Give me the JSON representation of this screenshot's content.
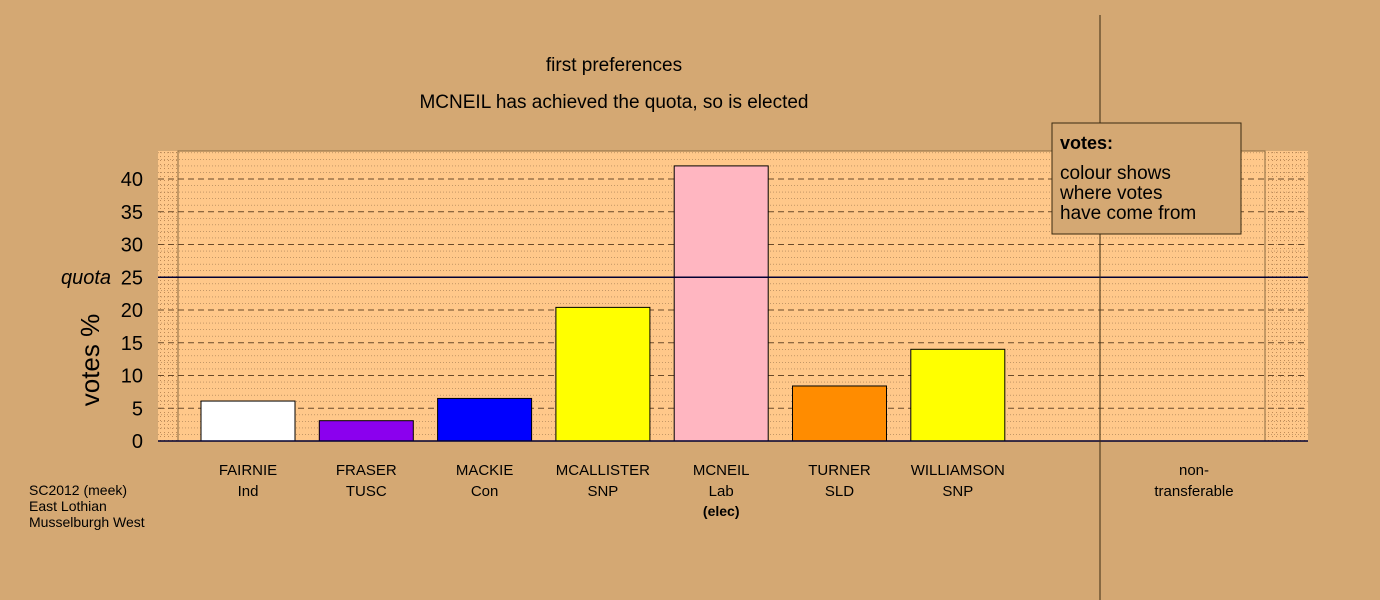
{
  "chart_data": {
    "type": "bar",
    "title": "first preferences",
    "subtitle": "MCNEIL has achieved the quota, so is elected",
    "ylabel": "votes %",
    "ylim": [
      0,
      42
    ],
    "yticks": [
      0,
      5,
      10,
      15,
      20,
      25,
      30,
      35,
      40
    ],
    "quota": {
      "value": 25,
      "label": "quota"
    },
    "candidates": [
      {
        "name": "FAIRNIE",
        "party": "Ind",
        "value": 6.1,
        "color": "#ffffff"
      },
      {
        "name": "FRASER",
        "party": "TUSC",
        "value": 3.1,
        "color": "#8b00ee"
      },
      {
        "name": "MACKIE",
        "party": "Con",
        "value": 6.5,
        "color": "#0000ff"
      },
      {
        "name": "MCALLISTER",
        "party": "SNP",
        "value": 20.4,
        "color": "#ffff00"
      },
      {
        "name": "MCNEIL",
        "party": "Lab",
        "value": 42.0,
        "color": "#ffb6c1",
        "status": "(elec)"
      },
      {
        "name": "TURNER",
        "party": "SLD",
        "value": 8.4,
        "color": "#ff8c00"
      },
      {
        "name": "WILLIAMSON",
        "party": "SNP",
        "value": 14.0,
        "color": "#ffff00"
      }
    ],
    "non_transferable": {
      "line1": "non-",
      "line2": "transferable",
      "value": 0
    },
    "legend": {
      "title": "votes:",
      "lines": [
        "colour shows",
        "where votes",
        "have come from"
      ],
      "placement": "top-right"
    },
    "grid": true
  },
  "footer": {
    "line1": "SC2012 (meek)",
    "line2": "East Lothian",
    "line3": "Musselburgh West"
  },
  "colors": {
    "background": "#d4a873",
    "plot_background": "#ffc88a",
    "axis": "#000033"
  }
}
